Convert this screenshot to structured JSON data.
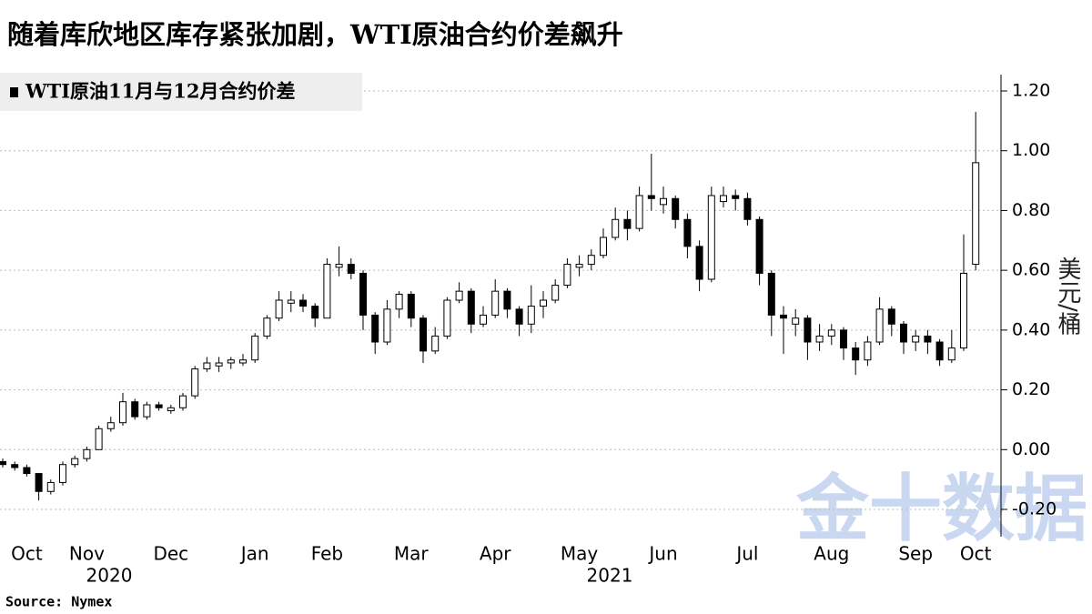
{
  "chart_data": {
    "type": "candlestick",
    "title": "随着库欣地区库存紧张加剧，WTI原油合约价差飙升",
    "y_label": "美元/桶",
    "source": "Source: Nymex",
    "watermark": "金十数据",
    "year_labels": [
      "2020",
      "2021"
    ],
    "categories": [
      null,
      null,
      "Oct",
      null,
      null,
      null,
      null,
      "Nov",
      null,
      null,
      null,
      null,
      null,
      null,
      "Dec",
      null,
      null,
      null,
      null,
      null,
      null,
      "Jan",
      null,
      null,
      null,
      null,
      null,
      "Feb",
      null,
      null,
      null,
      null,
      null,
      null,
      "Mar",
      null,
      null,
      null,
      null,
      null,
      null,
      "Apr",
      null,
      null,
      null,
      null,
      null,
      null,
      "May",
      null,
      null,
      null,
      null,
      null,
      null,
      "Jun",
      null,
      null,
      null,
      null,
      null,
      null,
      "Jul",
      null,
      null,
      null,
      null,
      null,
      null,
      "Aug",
      null,
      null,
      null,
      null,
      null,
      null,
      "Sep",
      null,
      null,
      null,
      null,
      "Oct"
    ],
    "series": [
      {
        "name": "WTI原油11月与12月合约价差",
        "color": "#000000",
        "open": [
          -0.04,
          -0.05,
          -0.06,
          -0.08,
          -0.14,
          -0.11,
          -0.05,
          -0.03,
          0.0,
          0.07,
          0.09,
          0.16,
          0.11,
          0.15,
          0.13,
          0.14,
          0.18,
          0.27,
          0.28,
          0.29,
          0.29,
          0.3,
          0.38,
          0.44,
          0.49,
          0.5,
          0.48,
          0.44,
          0.61,
          0.62,
          0.59,
          0.45,
          0.36,
          0.47,
          0.52,
          0.44,
          0.33,
          0.38,
          0.5,
          0.53,
          0.42,
          0.45,
          0.53,
          0.47,
          0.42,
          0.48,
          0.5,
          0.55,
          0.61,
          0.62,
          0.65,
          0.71,
          0.77,
          0.74,
          0.85,
          0.82,
          0.84,
          0.77,
          0.68,
          0.57,
          0.83,
          0.85,
          0.84,
          0.77,
          0.59,
          0.45,
          0.42,
          0.44,
          0.36,
          0.38,
          0.4,
          0.34,
          0.3,
          0.36,
          0.47,
          0.42,
          0.36,
          0.38,
          0.36,
          0.3,
          0.34,
          0.62
        ],
        "high": [
          -0.03,
          -0.04,
          -0.05,
          -0.08,
          -0.1,
          -0.04,
          -0.02,
          0.01,
          0.08,
          0.11,
          0.19,
          0.17,
          0.16,
          0.16,
          0.15,
          0.19,
          0.28,
          0.31,
          0.31,
          0.31,
          0.32,
          0.39,
          0.45,
          0.53,
          0.53,
          0.52,
          0.49,
          0.64,
          0.68,
          0.64,
          0.6,
          0.46,
          0.5,
          0.53,
          0.53,
          0.45,
          0.41,
          0.51,
          0.56,
          0.54,
          0.48,
          0.57,
          0.54,
          0.48,
          0.55,
          0.53,
          0.57,
          0.64,
          0.65,
          0.67,
          0.74,
          0.81,
          0.8,
          0.88,
          0.99,
          0.88,
          0.85,
          0.79,
          0.7,
          0.88,
          0.88,
          0.87,
          0.86,
          0.78,
          0.6,
          0.48,
          0.47,
          0.45,
          0.42,
          0.42,
          0.41,
          0.36,
          0.38,
          0.51,
          0.48,
          0.43,
          0.4,
          0.4,
          0.37,
          0.4,
          0.72,
          1.13
        ],
        "low": [
          -0.06,
          -0.07,
          -0.09,
          -0.17,
          -0.15,
          -0.12,
          -0.06,
          -0.04,
          0.0,
          0.06,
          0.08,
          0.1,
          0.1,
          0.13,
          0.12,
          0.13,
          0.17,
          0.26,
          0.26,
          0.27,
          0.28,
          0.29,
          0.37,
          0.43,
          0.46,
          0.46,
          0.41,
          0.44,
          0.58,
          0.57,
          0.4,
          0.32,
          0.35,
          0.44,
          0.41,
          0.29,
          0.32,
          0.37,
          0.49,
          0.39,
          0.41,
          0.44,
          0.44,
          0.38,
          0.39,
          0.44,
          0.49,
          0.54,
          0.58,
          0.6,
          0.64,
          0.7,
          0.7,
          0.73,
          0.8,
          0.79,
          0.74,
          0.64,
          0.53,
          0.56,
          0.81,
          0.8,
          0.75,
          0.55,
          0.38,
          0.32,
          0.38,
          0.3,
          0.33,
          0.35,
          0.3,
          0.25,
          0.28,
          0.35,
          0.38,
          0.32,
          0.33,
          0.32,
          0.28,
          0.29,
          0.33,
          0.6
        ],
        "close": [
          -0.05,
          -0.06,
          -0.08,
          -0.14,
          -0.11,
          -0.05,
          -0.03,
          0.0,
          0.07,
          0.09,
          0.16,
          0.11,
          0.15,
          0.14,
          0.14,
          0.18,
          0.27,
          0.29,
          0.29,
          0.3,
          0.3,
          0.38,
          0.44,
          0.5,
          0.5,
          0.48,
          0.44,
          0.62,
          0.62,
          0.59,
          0.45,
          0.36,
          0.47,
          0.52,
          0.44,
          0.33,
          0.38,
          0.5,
          0.53,
          0.42,
          0.45,
          0.53,
          0.47,
          0.42,
          0.48,
          0.5,
          0.55,
          0.62,
          0.62,
          0.65,
          0.71,
          0.77,
          0.74,
          0.85,
          0.84,
          0.84,
          0.77,
          0.68,
          0.57,
          0.85,
          0.85,
          0.84,
          0.77,
          0.59,
          0.45,
          0.44,
          0.44,
          0.36,
          0.38,
          0.4,
          0.34,
          0.3,
          0.36,
          0.47,
          0.42,
          0.36,
          0.38,
          0.36,
          0.3,
          0.34,
          0.59,
          0.96
        ]
      }
    ],
    "ylim": [
      -0.2,
      1.2
    ],
    "yticks": [
      {
        "value": -0.2,
        "label": "-0.20"
      },
      {
        "value": 0,
        "label": "0.00"
      },
      {
        "value": 0.2,
        "label": "0.20"
      },
      {
        "value": 0.4,
        "label": "0.40"
      },
      {
        "value": 0.6,
        "label": "0.60"
      },
      {
        "value": 0.8,
        "label": "0.80"
      },
      {
        "value": 1.0,
        "label": "1.00"
      },
      {
        "value": 1.2,
        "label": "1.20"
      }
    ],
    "grid": true,
    "up_color": "#ffffff",
    "down_color": "#000000"
  }
}
